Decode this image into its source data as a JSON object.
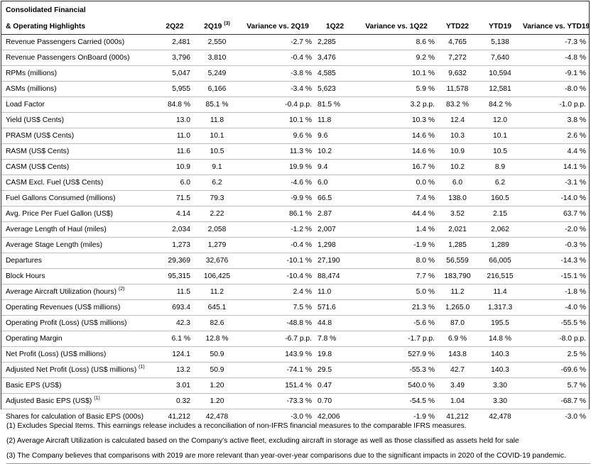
{
  "table": {
    "title_line1": "Consolidated Financial",
    "title_line2": "& Operating Highlights",
    "columns": [
      "2Q22",
      "2Q19",
      "Variance vs. 2Q19",
      "1Q22",
      "Variance vs. 1Q22",
      "YTD22",
      "YTD19",
      "Variance vs. YTD19"
    ],
    "col_2q19_footnote": "(3)",
    "rows": [
      {
        "label": "Revenue Passengers Carried (000s)",
        "fn": "",
        "v": [
          "2,481",
          "2,550",
          "-2.7 %",
          "2,285",
          "8.6 %",
          "4,765",
          "5,138",
          "-7.3 %"
        ]
      },
      {
        "label": "Revenue Passengers OnBoard (000s)",
        "fn": "",
        "v": [
          "3,796",
          "3,810",
          "-0.4 %",
          "3,476",
          "9.2 %",
          "7,272",
          "7,640",
          "-4.8 %"
        ]
      },
      {
        "label": "RPMs (millions)",
        "fn": "",
        "v": [
          "5,047",
          "5,249",
          "-3.8 %",
          "4,585",
          "10.1 %",
          "9,632",
          "10,594",
          "-9.1 %"
        ]
      },
      {
        "label": "ASMs (millions)",
        "fn": "",
        "v": [
          "5,955",
          "6,166",
          "-3.4 %",
          "5,623",
          "5.9 %",
          "11,578",
          "12,581",
          "-8.0 %"
        ]
      },
      {
        "label": "Load Factor",
        "fn": "",
        "v": [
          "84.8 %",
          "85.1 %",
          "-0.4 p.p.",
          "81.5 %",
          "3.2 p.p.",
          "83.2 %",
          "84.2 %",
          "-1.0 p.p."
        ]
      },
      {
        "label": "Yield (US$ Cents)",
        "fn": "",
        "v": [
          "13.0",
          "11.8",
          "10.1 %",
          "11.8",
          "10.3 %",
          "12.4",
          "12.0",
          "3.8 %"
        ]
      },
      {
        "label": "PRASM (US$ Cents)",
        "fn": "",
        "v": [
          "11.0",
          "10.1",
          "9.6 %",
          "9.6",
          "14.6 %",
          "10.3",
          "10.1",
          "2.6 %"
        ]
      },
      {
        "label": "RASM (US$ Cents)",
        "fn": "",
        "v": [
          "11.6",
          "10.5",
          "11.3 %",
          "10.2",
          "14.6 %",
          "10.9",
          "10.5",
          "4.4 %"
        ]
      },
      {
        "label": "CASM (US$ Cents)",
        "fn": "",
        "v": [
          "10.9",
          "9.1",
          "19.9 %",
          "9.4",
          "16.7 %",
          "10.2",
          "8.9",
          "14.1 %"
        ]
      },
      {
        "label": "CASM Excl. Fuel (US$ Cents)",
        "fn": "",
        "v": [
          "6.0",
          "6.2",
          "-4.6 %",
          "6.0",
          "0.0 %",
          "6.0",
          "6.2",
          "-3.1 %"
        ]
      },
      {
        "label": "Fuel Gallons Consumed (millions)",
        "fn": "",
        "v": [
          "71.5",
          "79.3",
          "-9.9 %",
          "66.5",
          "7.4 %",
          "138.0",
          "160.5",
          "-14.0 %"
        ]
      },
      {
        "label": "Avg. Price Per Fuel Gallon (US$)",
        "fn": "",
        "v": [
          "4.14",
          "2.22",
          "86.1 %",
          "2.87",
          "44.4 %",
          "3.52",
          "2.15",
          "63.7 %"
        ]
      },
      {
        "label": "Average Length of Haul (miles)",
        "fn": "",
        "v": [
          "2,034",
          "2,058",
          "-1.2 %",
          "2,007",
          "1.4 %",
          "2,021",
          "2,062",
          "-2.0 %"
        ]
      },
      {
        "label": "Average Stage Length (miles)",
        "fn": "",
        "v": [
          "1,273",
          "1,279",
          "-0.4 %",
          "1,298",
          "-1.9 %",
          "1,285",
          "1,289",
          "-0.3 %"
        ]
      },
      {
        "label": "Departures",
        "fn": "",
        "v": [
          "29,369",
          "32,676",
          "-10.1 %",
          "27,190",
          "8.0 %",
          "56,559",
          "66,005",
          "-14.3 %"
        ]
      },
      {
        "label": "Block Hours",
        "fn": "",
        "v": [
          "95,315",
          "106,425",
          "-10.4 %",
          "88,474",
          "7.7 %",
          "183,790",
          "216,515",
          "-15.1 %"
        ]
      },
      {
        "label": "Average Aircraft Utilization (hours)",
        "fn": "(2)",
        "v": [
          "11.5",
          "11.2",
          "2.4 %",
          "11.0",
          "5.0 %",
          "11.2",
          "11.4",
          "-1.8 %"
        ]
      },
      {
        "label": "Operating Revenues (US$ millions)",
        "fn": "",
        "v": [
          "693.4",
          "645.1",
          "7.5 %",
          "571.6",
          "21.3 %",
          "1,265.0",
          "1,317.3",
          "-4.0 %"
        ]
      },
      {
        "label": "Operating Profit (Loss) (US$ millions)",
        "fn": "",
        "v": [
          "42.3",
          "82.6",
          "-48.8 %",
          "44.8",
          "-5.6 %",
          "87.0",
          "195.5",
          "-55.5 %"
        ]
      },
      {
        "label": "Operating Margin",
        "fn": "",
        "v": [
          "6.1 %",
          "12.8 %",
          "-6.7 p.p.",
          "7.8 %",
          "-1.7 p.p.",
          "6.9 %",
          "14.8 %",
          "-8.0 p.p."
        ]
      },
      {
        "label": "Net Profit (Loss) (US$ millions)",
        "fn": "",
        "v": [
          "124.1",
          "50.9",
          "143.9 %",
          "19.8",
          "527.9 %",
          "143.8",
          "140.3",
          "2.5 %"
        ]
      },
      {
        "label": "Adjusted Net Profit (Loss) (US$ millions)",
        "fn": "(1)",
        "v": [
          "13.2",
          "50.9",
          "-74.1 %",
          "29.5",
          "-55.3 %",
          "42.7",
          "140.3",
          "-69.6 %"
        ]
      },
      {
        "label": "Basic EPS (US$)",
        "fn": "",
        "v": [
          "3.01",
          "1.20",
          "151.4 %",
          "0.47",
          "540.0 %",
          "3.49",
          "3.30",
          "5.7 %"
        ]
      },
      {
        "label": "Adjusted Basic EPS (US$)",
        "fn": "(1)",
        "v": [
          "0.32",
          "1.20",
          "-73.3 %",
          "0.70",
          "-54.5 %",
          "1.04",
          "3.30",
          "-68.7 %"
        ]
      },
      {
        "label": "Shares  for calculation of Basic EPS (000s)",
        "fn": "",
        "v": [
          "41,212",
          "42,478",
          "-3.0 %",
          "42,006",
          "-1.9 %",
          "41,212",
          "42,478",
          "-3.0 %"
        ]
      }
    ]
  },
  "footnotes": [
    "(1) Excludes Special Items. This earnings release includes a reconciliation of non-IFRS financial measures to the comparable IFRS measures.",
    "(2) Average Aircraft Utilization is calculated based on the Company's active fleet, excluding aircraft in storage as well as those classified as assets held for sale",
    "(3) The Company believes that comparisons with 2019 are more relevant than year-over-year comparisons due to the significant impacts in 2020 of the COVID-19 pandemic."
  ]
}
